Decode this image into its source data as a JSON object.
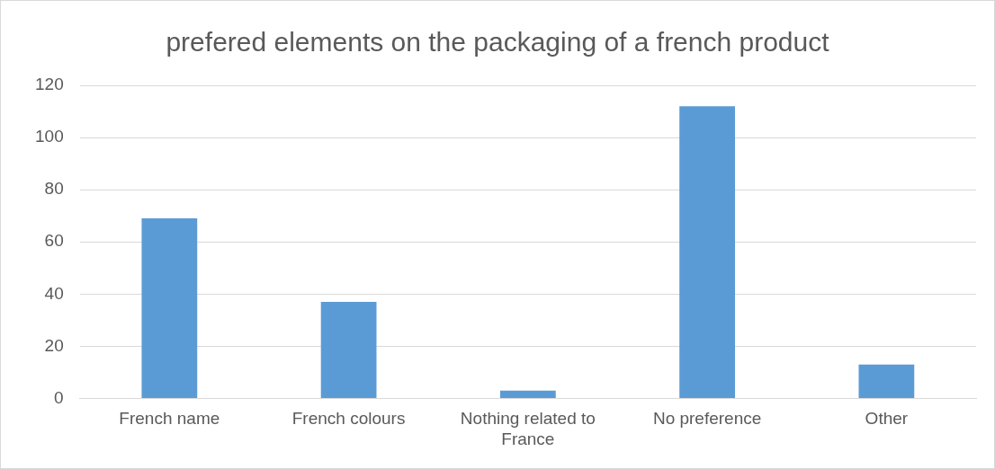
{
  "chart_data": {
    "type": "bar",
    "title": "prefered elements on the packaging of a french product",
    "categories": [
      "French name",
      "French colours",
      "Nothing related to France",
      "No preference",
      "Other"
    ],
    "values": [
      69,
      37,
      3,
      112,
      13
    ],
    "color": "#5b9bd5",
    "ylim": [
      0,
      120
    ],
    "yticks": [
      0,
      20,
      40,
      60,
      80,
      100,
      120
    ],
    "grid": "y",
    "legend": false
  }
}
